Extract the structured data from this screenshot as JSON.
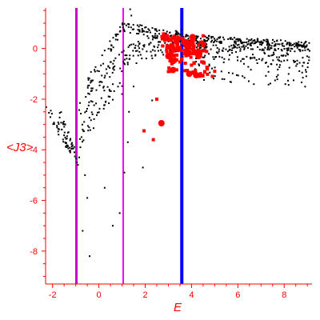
{
  "chart_data": {
    "type": "scatter",
    "title": "",
    "xlabel": "E",
    "ylabel": "<J3>",
    "xlim": [
      -2.3,
      9.2
    ],
    "ylim": [
      -9.3,
      1.6
    ],
    "x_ticks": [
      -2,
      0,
      2,
      4,
      6,
      8
    ],
    "y_ticks": [
      0,
      -2,
      -4,
      -6,
      -8
    ],
    "x_tick_labels": [
      "-2",
      "0",
      "2",
      "4",
      "6",
      "8"
    ],
    "y_tick_labels": [
      "0",
      "-2",
      "-4",
      "-6",
      "-8"
    ],
    "grid": false,
    "legend": "none",
    "colors": {
      "axis": "#ff0000",
      "black_points": "#000000",
      "red_points": "#ff0000",
      "magenta_line": "#ff00ff",
      "purple_line": "#cc00cc",
      "blue_line": "#0000ff"
    },
    "vertical_lines": [
      {
        "x": -0.97,
        "color": "#cc00cc",
        "width": 3
      },
      {
        "x": 1.05,
        "color": "#ff00ff",
        "width": 2
      },
      {
        "x": 3.58,
        "color": "#0000ff",
        "width": 4
      }
    ],
    "series": [
      {
        "color": "#000000",
        "marker": "small",
        "bands": [
          {
            "x0": -2.3,
            "x1": -1.0,
            "y0": -2.3,
            "y1": -4.3,
            "n": 40,
            "jitter": 0.25
          },
          {
            "x0": -1.7,
            "x1": -0.9,
            "y0": -2.6,
            "y1": -4.6,
            "n": 25,
            "jitter": 0.3
          },
          {
            "x0": -0.9,
            "x1": 1.05,
            "y0": -3.6,
            "y1": -1.0,
            "n": 45,
            "jitter": 0.45
          },
          {
            "x0": -0.9,
            "x1": 1.05,
            "y0": -2.6,
            "y1": -0.2,
            "n": 45,
            "jitter": 0.35
          },
          {
            "x0": -0.5,
            "x1": 1.05,
            "y0": -1.4,
            "y1": 0.9,
            "n": 40,
            "jitter": 0.25
          },
          {
            "x0": 0.9,
            "x1": 3.6,
            "y0": 0.9,
            "y1": 0.4,
            "n": 80,
            "jitter": 0.2
          },
          {
            "x0": 1.05,
            "x1": 3.6,
            "y0": 0.0,
            "y1": 0.5,
            "n": 60,
            "jitter": 0.25
          },
          {
            "x0": 1.05,
            "x1": 3.6,
            "y0": -0.5,
            "y1": 0.2,
            "n": 45,
            "jitter": 0.25
          },
          {
            "x0": 3.6,
            "x1": 9.1,
            "y0": 0.45,
            "y1": 0.15,
            "n": 170,
            "jitter": 0.12
          },
          {
            "x0": 3.6,
            "x1": 9.1,
            "y0": 0.2,
            "y1": 0.0,
            "n": 140,
            "jitter": 0.14
          },
          {
            "x0": 3.6,
            "x1": 9.1,
            "y0": -0.1,
            "y1": -0.5,
            "n": 110,
            "jitter": 0.25
          },
          {
            "x0": 4.0,
            "x1": 9.1,
            "y0": -0.8,
            "y1": -1.2,
            "n": 55,
            "jitter": 0.4
          }
        ],
        "points": [
          [
            -0.95,
            -4.5
          ],
          [
            -0.85,
            -4.3
          ],
          [
            -0.8,
            -3.9
          ],
          [
            -0.75,
            -3.5
          ],
          [
            -0.7,
            -3.2
          ],
          [
            -0.6,
            -5.0
          ],
          [
            -0.5,
            -5.9
          ],
          [
            -0.7,
            -7.2
          ],
          [
            -0.4,
            -8.2
          ],
          [
            0.25,
            -5.5
          ],
          [
            0.6,
            -7.0
          ],
          [
            1.1,
            -4.9
          ],
          [
            1.25,
            -3.7
          ],
          [
            1.3,
            -2.5
          ],
          [
            1.9,
            -4.7
          ],
          [
            0.9,
            -6.5
          ],
          [
            1.0,
            -1.8
          ],
          [
            1.2,
            -0.4
          ],
          [
            1.35,
            1.55
          ],
          [
            1.4,
            1.3
          ],
          [
            2.3,
            -2.05
          ],
          [
            1.5,
            -1.5
          ],
          [
            1.6,
            -0.1
          ],
          [
            1.7,
            0.1
          ]
        ]
      },
      {
        "color": "#ff0000",
        "marker": "small",
        "bands": [
          {
            "x0": 2.7,
            "x1": 4.6,
            "y0": 0.45,
            "y1": 0.1,
            "n": 45,
            "jitter": 0.15
          },
          {
            "x0": 2.9,
            "x1": 4.7,
            "y0": 0.0,
            "y1": -0.2,
            "n": 50,
            "jitter": 0.15
          },
          {
            "x0": 3.0,
            "x1": 4.7,
            "y0": -0.35,
            "y1": -0.65,
            "n": 30,
            "jitter": 0.2
          },
          {
            "x0": 3.0,
            "x1": 4.9,
            "y0": -0.8,
            "y1": -1.1,
            "n": 18,
            "jitter": 0.15
          }
        ],
        "points": [
          [
            1.95,
            -3.25
          ],
          [
            2.35,
            -3.6
          ],
          [
            2.5,
            -2.0
          ],
          [
            4.9,
            -1.1
          ],
          [
            5.0,
            -0.9
          ],
          [
            3.05,
            -0.9
          ],
          [
            3.15,
            -0.6
          ],
          [
            3.0,
            0.4
          ],
          [
            2.75,
            0.1
          ],
          [
            4.5,
            0.5
          ]
        ]
      },
      {
        "color": "#ff0000",
        "marker": "large",
        "points": [
          [
            2.7,
            -2.95
          ],
          [
            3.2,
            -0.5
          ],
          [
            3.2,
            -0.85
          ],
          [
            3.85,
            -0.2
          ],
          [
            4.15,
            -0.15
          ],
          [
            4.0,
            0.2
          ],
          [
            3.9,
            -1.0
          ],
          [
            4.2,
            -1.05
          ],
          [
            3.15,
            0.1
          ],
          [
            3.35,
            0.35
          ],
          [
            4.3,
            -0.3
          ],
          [
            3.0,
            -0.3
          ],
          [
            2.85,
            0.45
          ],
          [
            4.05,
            0.45
          ],
          [
            3.8,
            0.1
          ]
        ]
      }
    ]
  }
}
